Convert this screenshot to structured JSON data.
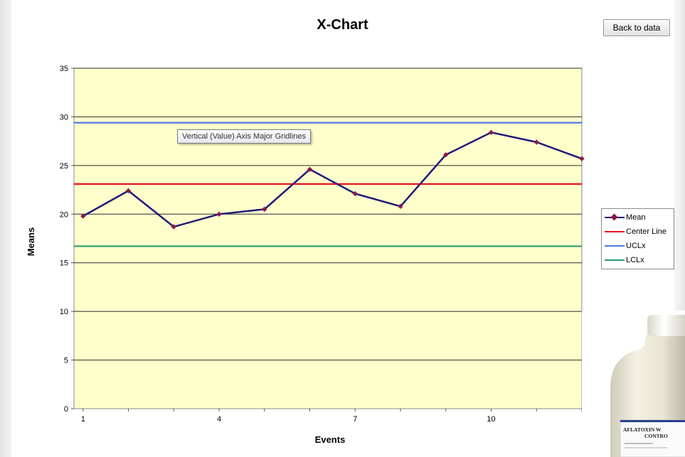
{
  "title": "X-Chart",
  "back_button_label": "Back to data",
  "tooltip_text": "Vertical (Value) Axis Major Gridlines",
  "bottle_label": "AFLATOXIN W\nCONTRO",
  "chart_data": {
    "type": "line",
    "title": "X-Chart",
    "xlabel": "Events",
    "ylabel": "Means",
    "ylim": [
      0,
      35
    ],
    "y_ticks": [
      0,
      5,
      10,
      15,
      20,
      25,
      30,
      35
    ],
    "x_tick_labels": [
      "1",
      "4",
      "7",
      "10"
    ],
    "x": [
      1,
      2,
      3,
      4,
      5,
      6,
      7,
      8,
      9,
      10,
      11,
      12
    ],
    "grid": true,
    "legend_position": "right",
    "plot_background": "#ffffcc",
    "series": [
      {
        "name": "Mean",
        "color": "#1f1a7a",
        "marker": "diamond",
        "values": [
          19.8,
          22.4,
          18.7,
          20.0,
          20.5,
          24.6,
          22.1,
          20.8,
          26.1,
          28.4,
          27.4,
          25.7
        ]
      },
      {
        "name": "Center Line",
        "color": "#e8141b",
        "values": [
          23.1,
          23.1,
          23.1,
          23.1,
          23.1,
          23.1,
          23.1,
          23.1,
          23.1,
          23.1,
          23.1,
          23.1
        ]
      },
      {
        "name": "UCLx",
        "color": "#4f79e3",
        "values": [
          29.4,
          29.4,
          29.4,
          29.4,
          29.4,
          29.4,
          29.4,
          29.4,
          29.4,
          29.4,
          29.4,
          29.4
        ]
      },
      {
        "name": "LCLx",
        "color": "#2e9a6c",
        "values": [
          16.7,
          16.7,
          16.7,
          16.7,
          16.7,
          16.7,
          16.7,
          16.7,
          16.7,
          16.7,
          16.7,
          16.7
        ]
      }
    ]
  }
}
